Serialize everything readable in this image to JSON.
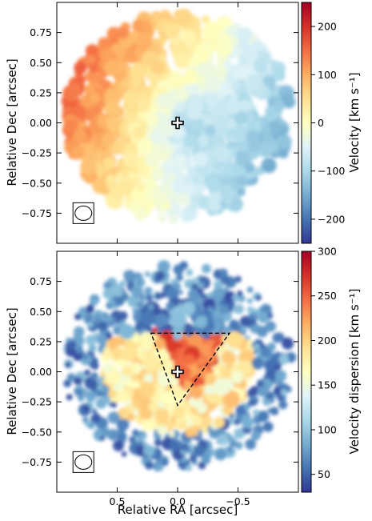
{
  "chart_data": [
    {
      "type": "heatmap",
      "title": "",
      "xlabel": "",
      "ylabel": "Relative Dec [arcsec]",
      "xlim": [
        1.0,
        -1.0
      ],
      "ylim": [
        -1.0,
        1.0
      ],
      "x_ticks": [
        0.5,
        0.0,
        -0.5
      ],
      "x_tick_labels": [
        "",
        "",
        ""
      ],
      "y_ticks": [
        0.75,
        0.5,
        0.25,
        0.0,
        -0.25,
        -0.5,
        -0.75
      ],
      "y_tick_labels": [
        "0.75",
        "0.50",
        "0.25",
        "0.00",
        "−0.25",
        "−0.50",
        "−0.75"
      ],
      "colorbar": {
        "label": "Velocity [km s⁻¹]",
        "range": [
          -250,
          250
        ],
        "ticks": [
          200,
          100,
          0,
          -100,
          -200
        ],
        "tick_labels": [
          "200",
          "100",
          "0",
          "−100",
          "−200"
        ],
        "colormap": "RdYlBu_r"
      },
      "marker": {
        "type": "cross",
        "x": 0.0,
        "y": 0.0
      },
      "beam": {
        "x": 0.78,
        "y": -0.75,
        "label": "beam"
      },
      "grid": false
    },
    {
      "type": "heatmap",
      "title": "",
      "xlabel": "Relative RA [arcsec]",
      "ylabel": "Relative Dec [arcsec]",
      "xlim": [
        1.0,
        -1.0
      ],
      "ylim": [
        -1.0,
        1.0
      ],
      "x_ticks": [
        0.5,
        0.0,
        -0.5
      ],
      "x_tick_labels": [
        "0.5",
        "0.0",
        "−0.5"
      ],
      "y_ticks": [
        0.75,
        0.5,
        0.25,
        0.0,
        -0.25,
        -0.5,
        -0.75
      ],
      "y_tick_labels": [
        "0.75",
        "0.50",
        "0.25",
        "0.00",
        "−0.25",
        "−0.50",
        "−0.75"
      ],
      "colorbar": {
        "label": "Velocity dispersion [km s⁻¹]",
        "range": [
          30,
          300
        ],
        "ticks": [
          300,
          250,
          200,
          150,
          100,
          50
        ],
        "tick_labels": [
          "300",
          "250",
          "200",
          "150",
          "100",
          "50"
        ],
        "colormap": "RdYlBu_r"
      },
      "marker": {
        "type": "cross",
        "x": 0.0,
        "y": 0.0
      },
      "triangle": [
        [
          0.22,
          0.32
        ],
        [
          -0.43,
          0.32
        ],
        [
          0.0,
          -0.28
        ]
      ],
      "beam": {
        "x": 0.78,
        "y": -0.75,
        "label": "beam"
      },
      "grid": false
    }
  ]
}
